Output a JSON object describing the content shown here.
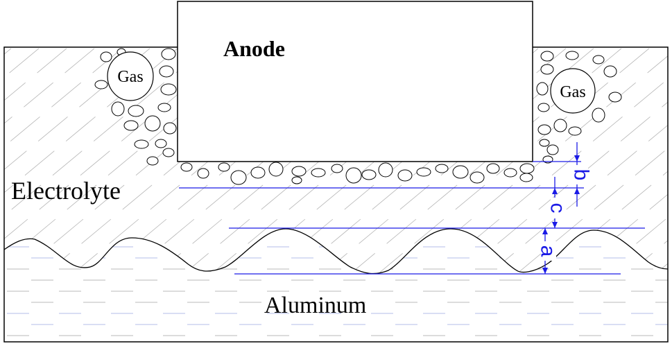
{
  "labels": {
    "anode": "Anode",
    "gas_left": "Gas",
    "gas_right": "Gas",
    "electrolyte": "Electrolyte",
    "aluminum": "Aluminum"
  },
  "dimensions": {
    "a": "a",
    "b": "b",
    "c": "c"
  },
  "colors": {
    "outline": "#000000",
    "dimension": "#1a1ae6",
    "hatch": "#b4b4b4",
    "aluminum_dash_gray": "#a0a0a0",
    "aluminum_dash_blue": "#9aa6e0"
  }
}
